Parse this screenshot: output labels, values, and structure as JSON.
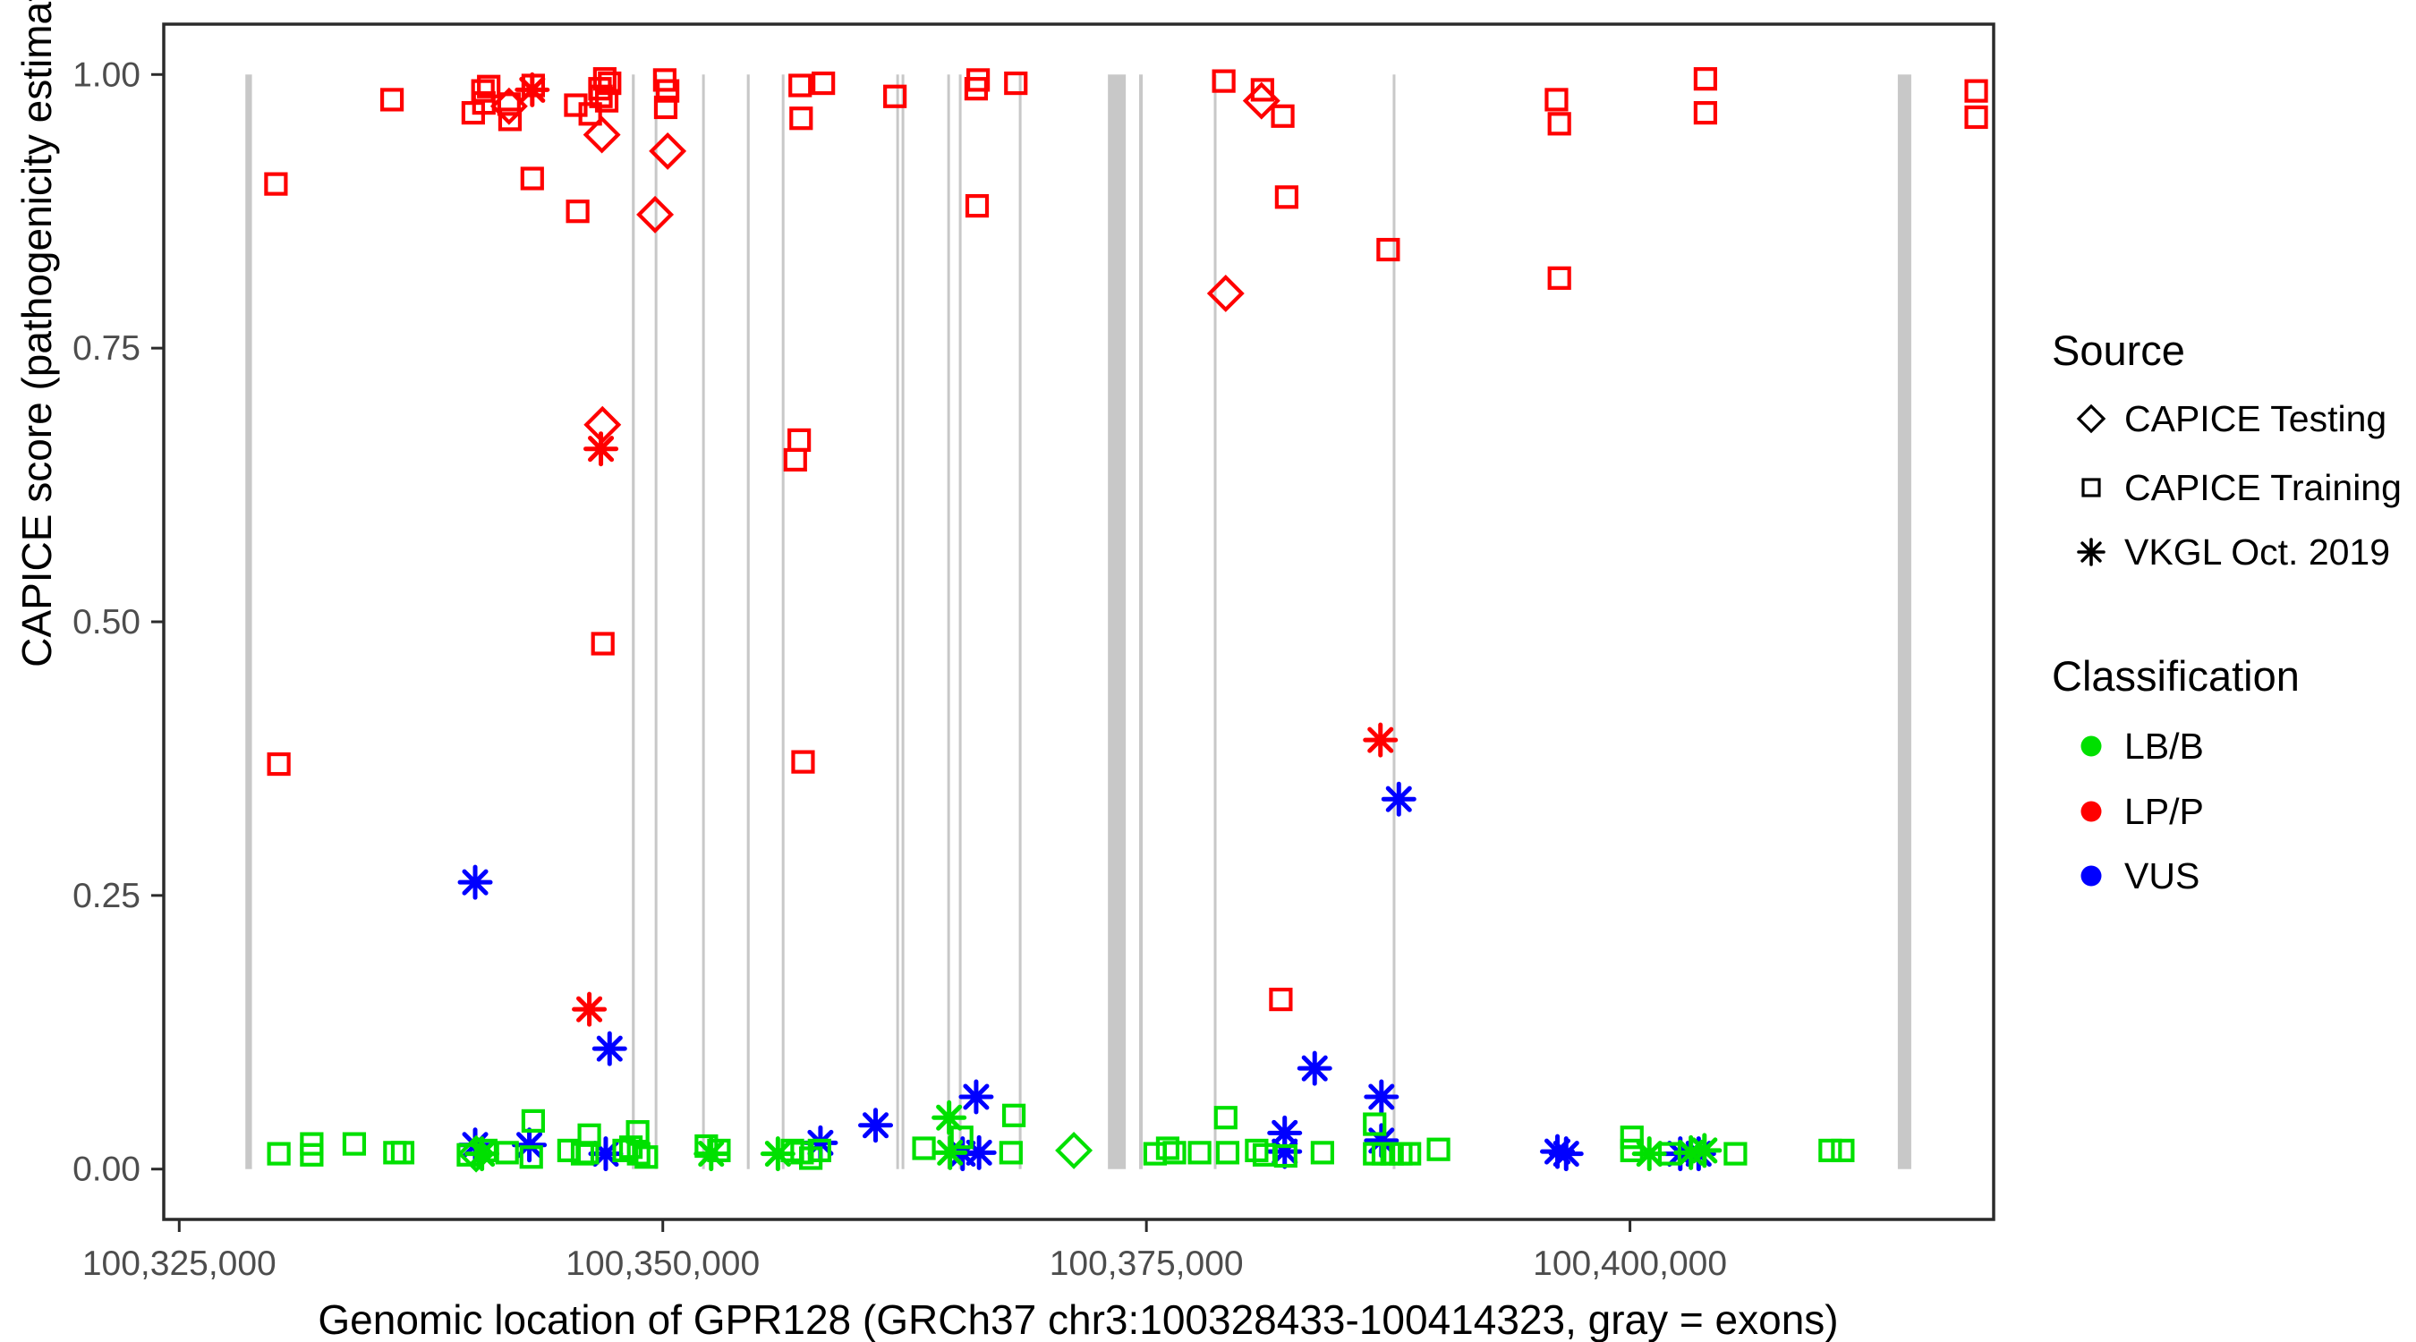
{
  "chart_data": {
    "type": "scatter",
    "title": "",
    "xlabel": "Genomic location of GPR128 (GRCh37 chr3:100328433-100414323, gray = exons)",
    "ylabel": "CAPICE score (pathogenicity estimate)",
    "x_domain": [
      100324200,
      100418800
    ],
    "y_domain": [
      -0.046,
      1.046
    ],
    "x_ticks": [
      {
        "label": "100,325,000",
        "value": 100325000
      },
      {
        "label": "100,350,000",
        "value": 100350000
      },
      {
        "label": "100,375,000",
        "value": 100375000
      },
      {
        "label": "100,400,000",
        "value": 100400000
      }
    ],
    "y_ticks": [
      {
        "label": "0.00",
        "value": 0.0
      },
      {
        "label": "0.25",
        "value": 0.25
      },
      {
        "label": "0.50",
        "value": 0.5
      },
      {
        "label": "0.75",
        "value": 0.75
      },
      {
        "label": "1.00",
        "value": 1.0
      }
    ],
    "grid": false,
    "legend_position": "right",
    "legend": {
      "source": {
        "title": "Source",
        "items": [
          {
            "label": "CAPICE Testing",
            "marker": "diamond",
            "code": "d"
          },
          {
            "label": "CAPICE Training",
            "marker": "square",
            "code": "s"
          },
          {
            "label": "VKGL Oct. 2019",
            "marker": "asterisk",
            "code": "a"
          }
        ]
      },
      "classification": {
        "title": "Classification",
        "items": [
          {
            "label": "LB/B",
            "code": "g",
            "color": "#00E000"
          },
          {
            "label": "LP/P",
            "code": "r",
            "color": "#FF0000"
          },
          {
            "label": "VUS",
            "code": "b",
            "color": "#0000FF"
          }
        ]
      }
    },
    "colors": {
      "g": "#00E000",
      "r": "#FF0000",
      "b": "#0000FF"
    },
    "exon_color": "#C8C8C8",
    "exons": [
      [
        100328420,
        100328760
      ],
      [
        100348400,
        100348550
      ],
      [
        100349580,
        100349720
      ],
      [
        100352030,
        100352170
      ],
      [
        100354345,
        100354490
      ],
      [
        100356150,
        100356290
      ],
      [
        100362070,
        100362200
      ],
      [
        100362345,
        100362480
      ],
      [
        100364705,
        100364845
      ],
      [
        100365305,
        100365445
      ],
      [
        100368405,
        100368545
      ],
      [
        100373010,
        100373935
      ],
      [
        100374625,
        100374810
      ],
      [
        100378485,
        100378625
      ],
      [
        100387735,
        100387870
      ],
      [
        100413845,
        100414540
      ]
    ],
    "points_format": [
      "position_bp",
      "capice_score",
      "source_code",
      "classification_code"
    ],
    "points": [
      [
        100330000,
        0.9,
        "s",
        "r"
      ],
      [
        100330150,
        0.37,
        "s",
        "r"
      ],
      [
        100336000,
        0.977,
        "s",
        "r"
      ],
      [
        100340200,
        0.965,
        "s",
        "r"
      ],
      [
        100340700,
        0.985,
        "s",
        "r"
      ],
      [
        100340750,
        0.974,
        "s",
        "r"
      ],
      [
        100341000,
        0.989,
        "s",
        "r"
      ],
      [
        100342050,
        0.973,
        "s",
        "r"
      ],
      [
        100342100,
        0.959,
        "s",
        "r"
      ],
      [
        100343300,
        0.99,
        "s",
        "r"
      ],
      [
        100343250,
        0.905,
        "s",
        "r"
      ],
      [
        100345500,
        0.972,
        "s",
        "r"
      ],
      [
        100346250,
        0.964,
        "s",
        "r"
      ],
      [
        100346750,
        0.987,
        "s",
        "r"
      ],
      [
        100346800,
        0.98,
        "s",
        "r"
      ],
      [
        100347000,
        0.996,
        "s",
        "r"
      ],
      [
        100347250,
        0.992,
        "s",
        "r"
      ],
      [
        100347100,
        0.976,
        "s",
        "r"
      ],
      [
        100345600,
        0.875,
        "s",
        "r"
      ],
      [
        100346900,
        0.48,
        "s",
        "r"
      ],
      [
        100350100,
        0.995,
        "s",
        "r"
      ],
      [
        100350250,
        0.985,
        "s",
        "r"
      ],
      [
        100350150,
        0.97,
        "s",
        "r"
      ],
      [
        100357100,
        0.99,
        "s",
        "r"
      ],
      [
        100358300,
        0.992,
        "s",
        "r"
      ],
      [
        100357150,
        0.96,
        "s",
        "r"
      ],
      [
        100357050,
        0.666,
        "s",
        "r"
      ],
      [
        100356850,
        0.648,
        "s",
        "r"
      ],
      [
        100357250,
        0.372,
        "s",
        "r"
      ],
      [
        100362000,
        0.98,
        "s",
        "r"
      ],
      [
        100366300,
        0.995,
        "s",
        "r"
      ],
      [
        100366200,
        0.987,
        "s",
        "r"
      ],
      [
        100368250,
        0.992,
        "s",
        "r"
      ],
      [
        100366250,
        0.88,
        "s",
        "r"
      ],
      [
        100379000,
        0.994,
        "s",
        "r"
      ],
      [
        100381000,
        0.986,
        "s",
        "r"
      ],
      [
        100382050,
        0.962,
        "s",
        "r"
      ],
      [
        100382250,
        0.888,
        "s",
        "r"
      ],
      [
        100381950,
        0.155,
        "s",
        "r"
      ],
      [
        100387500,
        0.84,
        "s",
        "r"
      ],
      [
        100396200,
        0.977,
        "s",
        "r"
      ],
      [
        100396350,
        0.955,
        "s",
        "r"
      ],
      [
        100396350,
        0.814,
        "s",
        "r"
      ],
      [
        100403900,
        0.996,
        "s",
        "r"
      ],
      [
        100403900,
        0.965,
        "s",
        "r"
      ],
      [
        100417900,
        0.985,
        "s",
        "r"
      ],
      [
        100417900,
        0.961,
        "s",
        "r"
      ],
      [
        100342050,
        0.971,
        "d",
        "r"
      ],
      [
        100346850,
        0.945,
        "d",
        "r"
      ],
      [
        100346880,
        0.68,
        "d",
        "r"
      ],
      [
        100349600,
        0.872,
        "d",
        "r"
      ],
      [
        100350250,
        0.93,
        "d",
        "r"
      ],
      [
        100379100,
        0.8,
        "d",
        "r"
      ],
      [
        100380950,
        0.976,
        "d",
        "r"
      ],
      [
        100343250,
        0.986,
        "a",
        "r"
      ],
      [
        100346800,
        0.658,
        "a",
        "r"
      ],
      [
        100346200,
        0.146,
        "a",
        "r"
      ],
      [
        100387100,
        0.392,
        "a",
        "r"
      ],
      [
        100340300,
        0.262,
        "a",
        "b"
      ],
      [
        100347250,
        0.11,
        "a",
        "b"
      ],
      [
        100340300,
        0.022,
        "a",
        "b"
      ],
      [
        100343100,
        0.022,
        "a",
        "b"
      ],
      [
        100347050,
        0.014,
        "a",
        "b"
      ],
      [
        100358150,
        0.024,
        "a",
        "b"
      ],
      [
        100361000,
        0.04,
        "a",
        "b"
      ],
      [
        100366200,
        0.066,
        "a",
        "b"
      ],
      [
        100365500,
        0.014,
        "a",
        "b"
      ],
      [
        100366350,
        0.015,
        "a",
        "b"
      ],
      [
        100382150,
        0.033,
        "a",
        "b"
      ],
      [
        100382150,
        0.016,
        "a",
        "b"
      ],
      [
        100383700,
        0.092,
        "a",
        "b"
      ],
      [
        100387150,
        0.066,
        "a",
        "b"
      ],
      [
        100387150,
        0.026,
        "a",
        "b"
      ],
      [
        100388050,
        0.338,
        "a",
        "b"
      ],
      [
        100396250,
        0.016,
        "a",
        "b"
      ],
      [
        100396700,
        0.014,
        "a",
        "b"
      ],
      [
        100402600,
        0.014,
        "a",
        "b"
      ],
      [
        100403550,
        0.014,
        "a",
        "b"
      ],
      [
        100330150,
        0.014,
        "s",
        "g"
      ],
      [
        100331850,
        0.023,
        "s",
        "g"
      ],
      [
        100331850,
        0.013,
        "s",
        "g"
      ],
      [
        100334050,
        0.023,
        "s",
        "g"
      ],
      [
        100336150,
        0.015,
        "s",
        "g"
      ],
      [
        100336550,
        0.015,
        "s",
        "g"
      ],
      [
        100339950,
        0.013,
        "s",
        "g"
      ],
      [
        100340850,
        0.017,
        "s",
        "g"
      ],
      [
        100341950,
        0.015,
        "s",
        "g"
      ],
      [
        100343300,
        0.044,
        "s",
        "g"
      ],
      [
        100343200,
        0.011,
        "s",
        "g"
      ],
      [
        100345150,
        0.017,
        "s",
        "g"
      ],
      [
        100345850,
        0.014,
        "s",
        "g"
      ],
      [
        100346100,
        0.015,
        "s",
        "g"
      ],
      [
        100346200,
        0.031,
        "s",
        "g"
      ],
      [
        100348000,
        0.017,
        "s",
        "g"
      ],
      [
        100348350,
        0.02,
        "s",
        "g"
      ],
      [
        100348700,
        0.034,
        "s",
        "g"
      ],
      [
        100348750,
        0.014,
        "s",
        "g"
      ],
      [
        100349150,
        0.011,
        "s",
        "g"
      ],
      [
        100352250,
        0.021,
        "s",
        "g"
      ],
      [
        100352900,
        0.017,
        "s",
        "g"
      ],
      [
        100356700,
        0.017,
        "s",
        "g"
      ],
      [
        100357200,
        0.015,
        "s",
        "g"
      ],
      [
        100357650,
        0.01,
        "s",
        "g"
      ],
      [
        100358100,
        0.017,
        "s",
        "g"
      ],
      [
        100363500,
        0.019,
        "s",
        "g"
      ],
      [
        100365450,
        0.029,
        "s",
        "g"
      ],
      [
        100368150,
        0.049,
        "s",
        "g"
      ],
      [
        100368000,
        0.015,
        "s",
        "g"
      ],
      [
        100375450,
        0.014,
        "s",
        "g"
      ],
      [
        100376100,
        0.019,
        "s",
        "g"
      ],
      [
        100376450,
        0.015,
        "s",
        "g"
      ],
      [
        100377750,
        0.015,
        "s",
        "g"
      ],
      [
        100379100,
        0.047,
        "s",
        "g"
      ],
      [
        100379200,
        0.015,
        "s",
        "g"
      ],
      [
        100380700,
        0.017,
        "s",
        "g"
      ],
      [
        100381100,
        0.013,
        "s",
        "g"
      ],
      [
        100382200,
        0.012,
        "s",
        "g"
      ],
      [
        100384100,
        0.015,
        "s",
        "g"
      ],
      [
        100386800,
        0.041,
        "s",
        "g"
      ],
      [
        100386800,
        0.014,
        "s",
        "g"
      ],
      [
        100387250,
        0.014,
        "s",
        "g"
      ],
      [
        100387700,
        0.014,
        "s",
        "g"
      ],
      [
        100388150,
        0.014,
        "s",
        "g"
      ],
      [
        100388600,
        0.014,
        "s",
        "g"
      ],
      [
        100390100,
        0.018,
        "s",
        "g"
      ],
      [
        100400100,
        0.029,
        "s",
        "g"
      ],
      [
        100400100,
        0.017,
        "s",
        "g"
      ],
      [
        100402050,
        0.014,
        "s",
        "g"
      ],
      [
        100405450,
        0.014,
        "s",
        "g"
      ],
      [
        100410350,
        0.017,
        "s",
        "g"
      ],
      [
        100411000,
        0.017,
        "s",
        "g"
      ],
      [
        100340650,
        0.014,
        "a",
        "g"
      ],
      [
        100352500,
        0.014,
        "a",
        "g"
      ],
      [
        100355950,
        0.014,
        "a",
        "g"
      ],
      [
        100364800,
        0.047,
        "a",
        "g"
      ],
      [
        100364850,
        0.015,
        "a",
        "g"
      ],
      [
        100401000,
        0.014,
        "a",
        "g"
      ],
      [
        100403150,
        0.015,
        "a",
        "g"
      ],
      [
        100403850,
        0.017,
        "a",
        "g"
      ],
      [
        100340350,
        0.014,
        "d",
        "g"
      ],
      [
        100371250,
        0.017,
        "d",
        "g"
      ]
    ]
  },
  "style": {
    "tick_label_color": "#4D4D4D",
    "axis_line_color": "#2B2B2B",
    "background": "#FFFFFF"
  }
}
